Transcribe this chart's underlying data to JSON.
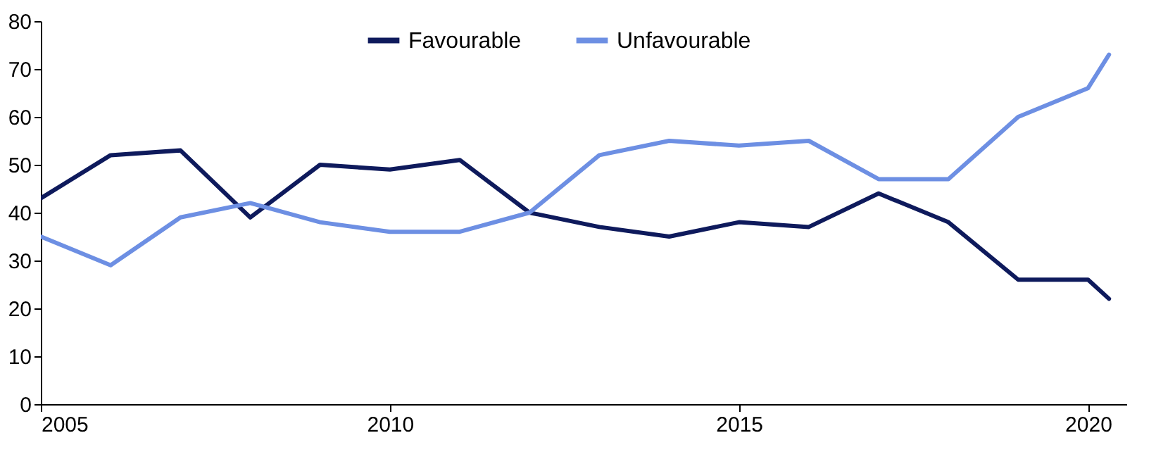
{
  "chart_data": {
    "type": "line",
    "x": [
      2005,
      2006,
      2007,
      2008,
      2009,
      2010,
      2011,
      2012,
      2013,
      2014,
      2015,
      2016,
      2017,
      2018,
      2019,
      2020,
      2020.3
    ],
    "series": [
      {
        "name": "Favourable",
        "color": "#0e1a5c",
        "values": [
          43,
          52,
          53,
          39,
          50,
          49,
          51,
          40,
          37,
          35,
          38,
          37,
          44,
          38,
          26,
          26,
          22
        ]
      },
      {
        "name": "Unfavourable",
        "color": "#6d8fe3",
        "values": [
          35,
          29,
          39,
          42,
          38,
          36,
          36,
          40,
          52,
          55,
          54,
          55,
          47,
          47,
          60,
          66,
          73
        ]
      }
    ],
    "xlim": [
      2005,
      2020.55
    ],
    "xticks": [
      2005,
      2010,
      2015,
      2020
    ],
    "ylim": [
      0,
      80
    ],
    "yticks": [
      0,
      10,
      20,
      30,
      40,
      50,
      60,
      70,
      80
    ],
    "grid": false,
    "legend": "top",
    "marker": "none",
    "line_style": "solid"
  }
}
